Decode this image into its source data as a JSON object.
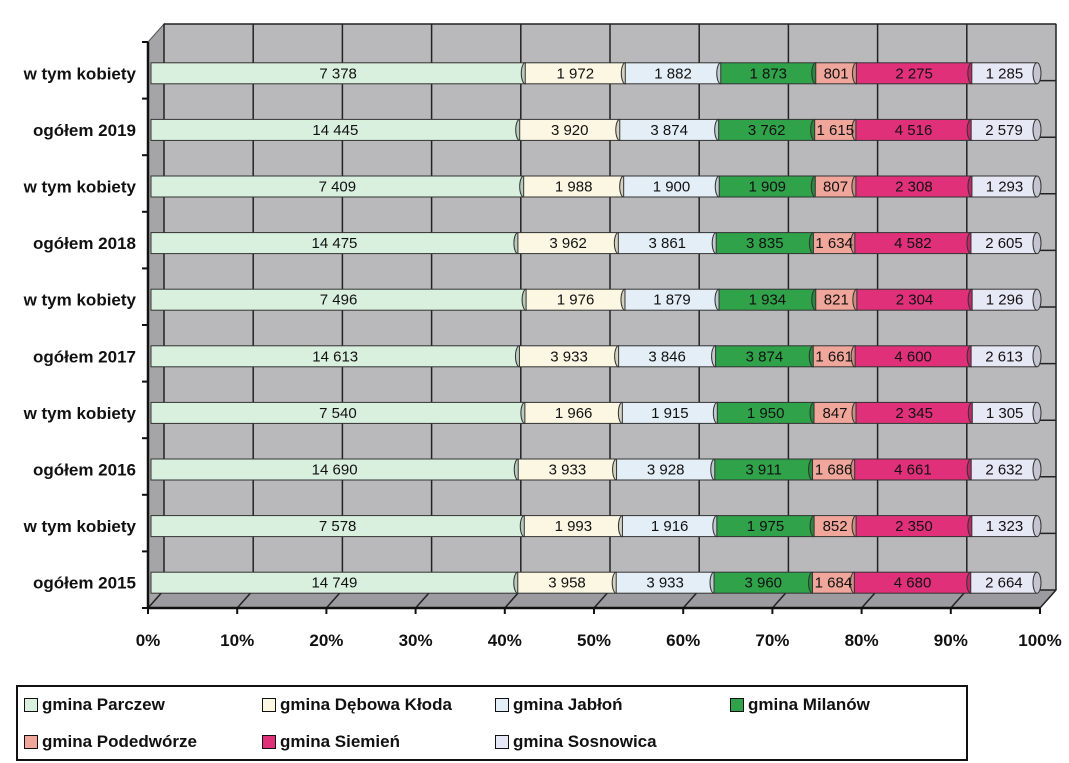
{
  "chart_data": {
    "type": "bar",
    "orientation": "horizontal",
    "stacked": "percent",
    "categories": [
      "ogółem 2015",
      "w tym kobiety",
      "ogółem 2016",
      "w tym kobiety",
      "ogółem 2017",
      "w tym kobiety",
      "ogółem 2018",
      "w tym kobiety",
      "ogółem 2019",
      "w tym kobiety"
    ],
    "series": [
      {
        "name": "gmina Parczew",
        "color": "#d9f0df",
        "values": [
          14749,
          7578,
          14690,
          7540,
          14613,
          7496,
          14475,
          7409,
          14445,
          7378
        ],
        "labels": [
          "14 749",
          "7 578",
          "14 690",
          "7 540",
          "14 613",
          "7 496",
          "14 475",
          "7 409",
          "14 445",
          "7 378"
        ]
      },
      {
        "name": "gmina Dębowa Kłoda",
        "color": "#fbf7e2",
        "values": [
          3958,
          1993,
          3933,
          1966,
          3933,
          1976,
          3962,
          1988,
          3920,
          1972
        ],
        "labels": [
          "3 958",
          "1 993",
          "3 933",
          "1 966",
          "3 933",
          "1 976",
          "3 962",
          "1 988",
          "3 920",
          "1 972"
        ]
      },
      {
        "name": "gmina Jabłoń",
        "color": "#e3eef6",
        "values": [
          3933,
          1916,
          3928,
          1915,
          3846,
          1879,
          3861,
          1900,
          3874,
          1882
        ],
        "labels": [
          "3 933",
          "1 916",
          "3 928",
          "1 915",
          "3 846",
          "1 879",
          "3 861",
          "1 900",
          "3 874",
          "1 882"
        ]
      },
      {
        "name": "gmina Milanów",
        "color": "#2fa24a",
        "values": [
          3960,
          1975,
          3911,
          1950,
          3874,
          1934,
          3835,
          1909,
          3762,
          1873
        ],
        "labels": [
          "3 960",
          "1 975",
          "3 911",
          "1 950",
          "3 874",
          "1 934",
          "3 835",
          "1 909",
          "3 762",
          "1 873"
        ]
      },
      {
        "name": "gmina Podedwórze",
        "color": "#f0a69a",
        "values": [
          1684,
          852,
          1686,
          847,
          1661,
          821,
          1634,
          807,
          1615,
          801
        ],
        "labels": [
          "1 684",
          "852",
          "1 686",
          "847",
          "1 661",
          "821",
          "1 634",
          "807",
          "1 615",
          "801"
        ]
      },
      {
        "name": "gmina Siemień",
        "color": "#e0307a",
        "values": [
          4680,
          2350,
          4661,
          2345,
          4600,
          2304,
          4582,
          2308,
          4516,
          2275
        ],
        "labels": [
          "4 680",
          "2 350",
          "4 661",
          "2 345",
          "4 600",
          "2 304",
          "4 582",
          "2 308",
          "4 516",
          "2 275"
        ]
      },
      {
        "name": "gmina Sosnowica",
        "color": "#e6e8f5",
        "values": [
          2664,
          1323,
          2632,
          1305,
          2613,
          1296,
          2605,
          1293,
          2579,
          1285
        ],
        "labels": [
          "2 664",
          "1 323",
          "2 632",
          "1 305",
          "2 613",
          "1 296",
          "2 605",
          "1 293",
          "2 579",
          "1 285"
        ]
      }
    ],
    "xticks": [
      "0%",
      "10%",
      "20%",
      "30%",
      "40%",
      "50%",
      "60%",
      "70%",
      "80%",
      "90%",
      "100%"
    ],
    "xlim": [
      0,
      100
    ],
    "grid": true,
    "legend_position": "bottom",
    "title": "",
    "xlabel": "",
    "ylabel": ""
  },
  "legend": {
    "items": [
      "gmina Parczew",
      "gmina Dębowa Kłoda",
      "gmina Jabłoń",
      "gmina Milanów",
      "gmina Podedwórze",
      "gmina Siemień",
      "gmina Sosnowica"
    ],
    "colors": [
      "#d9f0df",
      "#fbf7e2",
      "#e3eef6",
      "#2fa24a",
      "#f0a69a",
      "#e0307a",
      "#e6e8f5"
    ]
  }
}
